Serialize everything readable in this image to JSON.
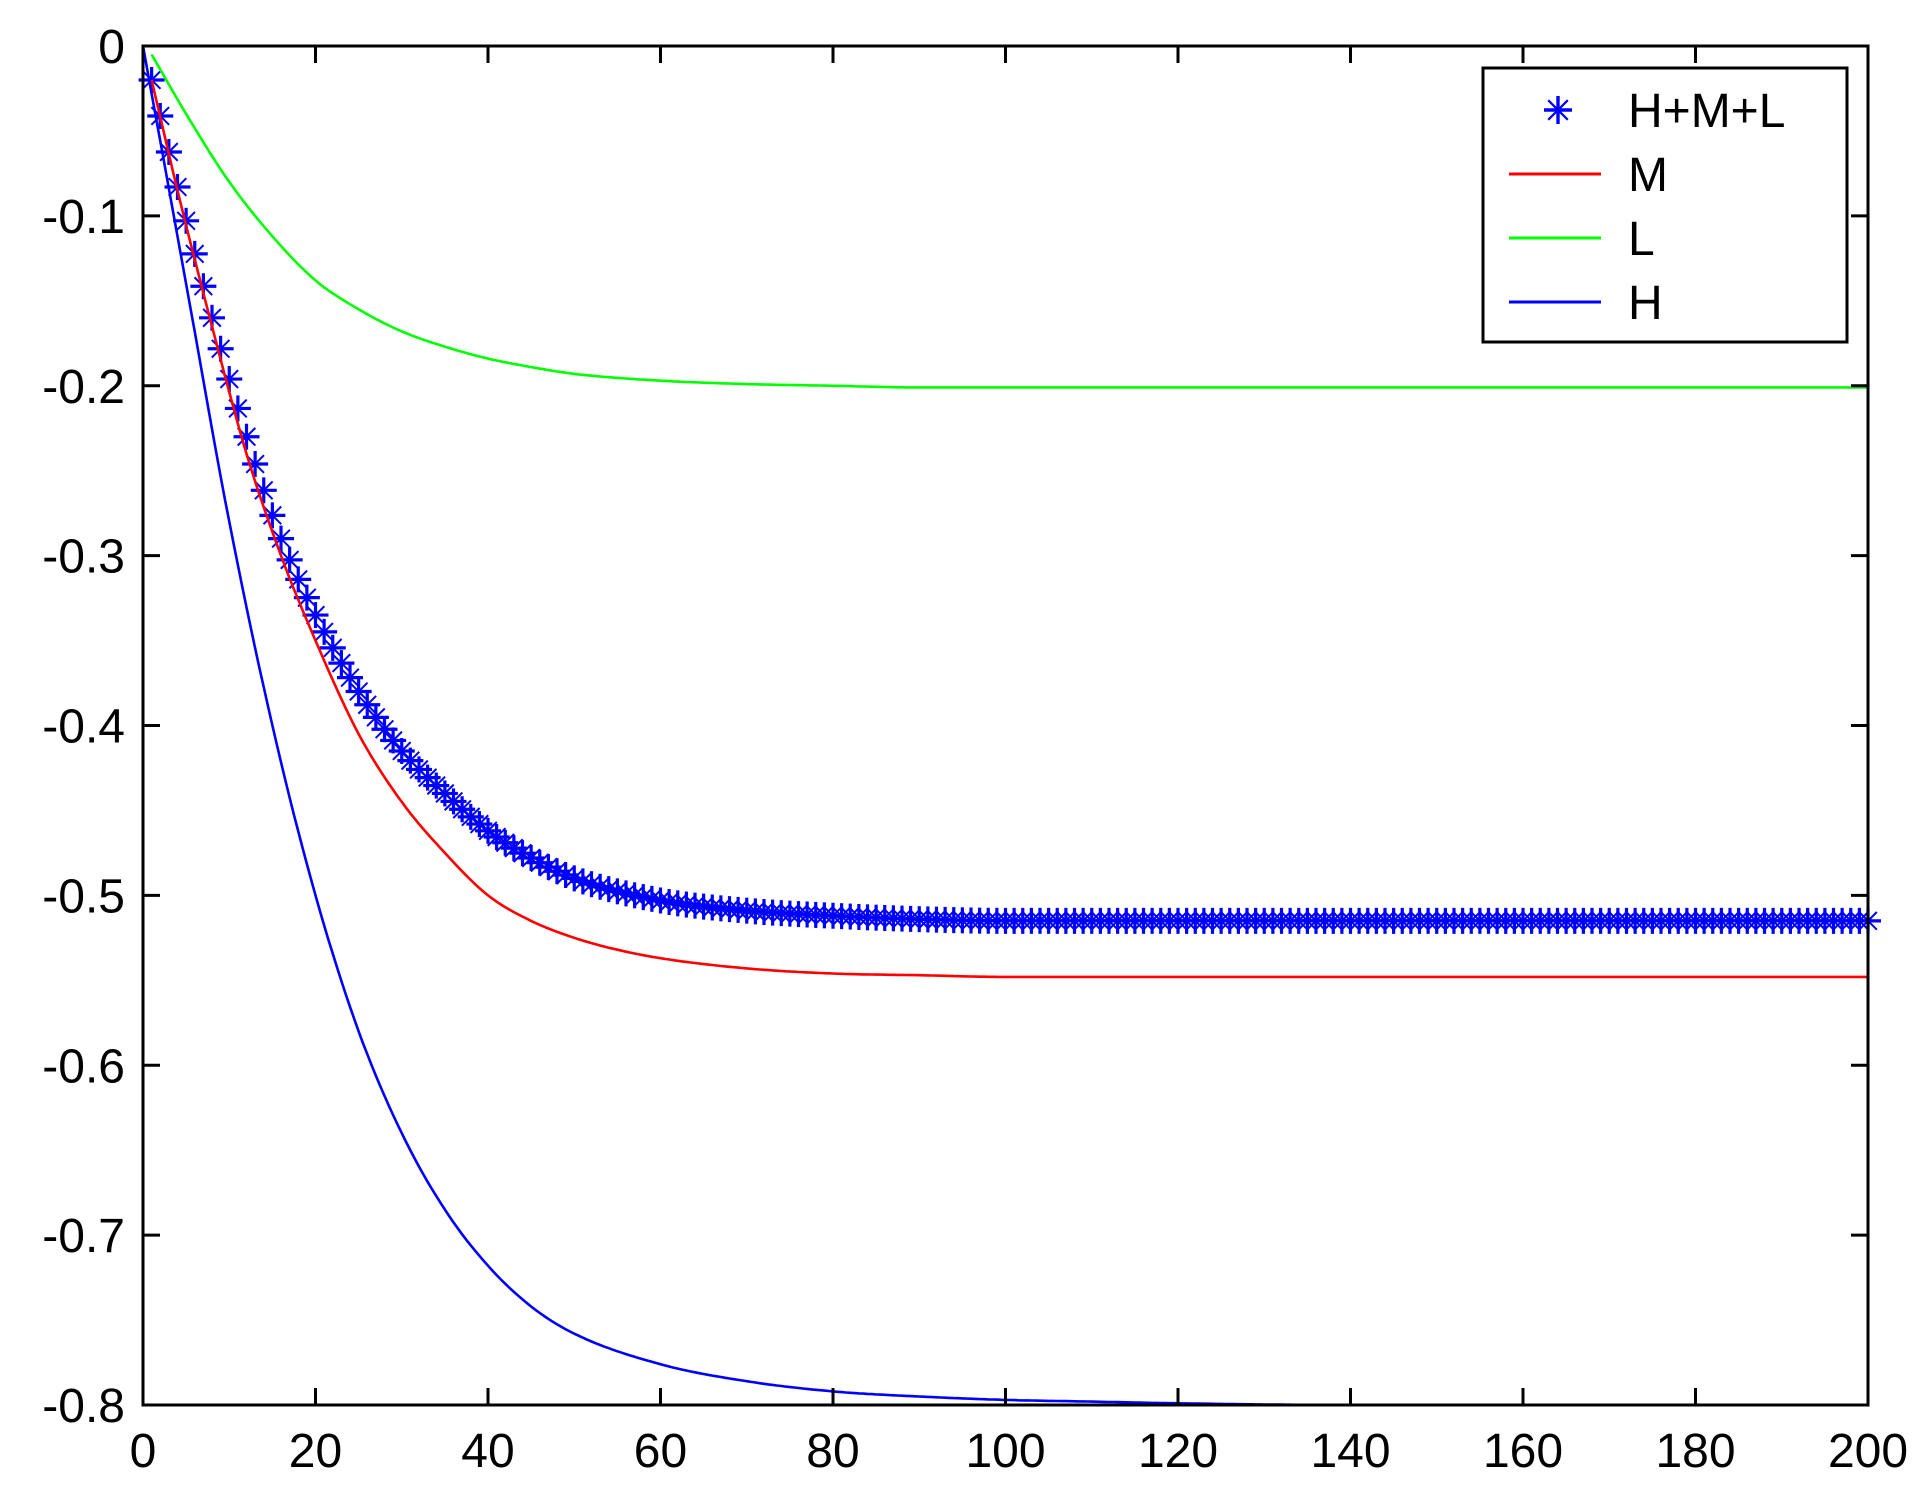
{
  "chart_data": {
    "type": "line",
    "title": "",
    "xlabel": "",
    "ylabel": "",
    "xlim": [
      0,
      200
    ],
    "ylim": [
      -0.8,
      0
    ],
    "xticks": [
      0,
      20,
      40,
      60,
      80,
      100,
      120,
      140,
      160,
      180,
      200
    ],
    "yticks": [
      0,
      -0.1,
      -0.2,
      -0.3,
      -0.4,
      -0.5,
      -0.6,
      -0.7,
      -0.8
    ],
    "xtick_labels": [
      "0",
      "20",
      "40",
      "60",
      "80",
      "100",
      "120",
      "140",
      "160",
      "180",
      "200"
    ],
    "ytick_labels": [
      "0",
      "-0.1",
      "-0.2",
      "-0.3",
      "-0.4",
      "-0.5",
      "-0.6",
      "-0.7",
      "-0.8"
    ],
    "grid": false,
    "legend_position": "top-right",
    "series": [
      {
        "name": "H+M+L",
        "color": "#0000ff",
        "style": "stars",
        "x": [
          1,
          4,
          8,
          12,
          16,
          20,
          25,
          30,
          35,
          40,
          45,
          50,
          60,
          70,
          80,
          90,
          100,
          120,
          140,
          160,
          180,
          200
        ],
        "y": [
          -0.02,
          -0.083,
          -0.16,
          -0.23,
          -0.29,
          -0.335,
          -0.38,
          -0.415,
          -0.44,
          -0.462,
          -0.478,
          -0.49,
          -0.503,
          -0.509,
          -0.512,
          -0.514,
          -0.515,
          -0.515,
          -0.515,
          -0.515,
          -0.515,
          -0.515
        ]
      },
      {
        "name": "M",
        "color": "#ff0000",
        "style": "line",
        "x": [
          1,
          4,
          8,
          12,
          16,
          20,
          25,
          30,
          35,
          40,
          45,
          50,
          55,
          60,
          70,
          80,
          90,
          100,
          120,
          140,
          160,
          180,
          200
        ],
        "y": [
          -0.02,
          -0.085,
          -0.165,
          -0.24,
          -0.3,
          -0.35,
          -0.405,
          -0.445,
          -0.475,
          -0.5,
          -0.515,
          -0.525,
          -0.532,
          -0.537,
          -0.543,
          -0.546,
          -0.547,
          -0.548,
          -0.548,
          -0.548,
          -0.548,
          -0.548,
          -0.548
        ]
      },
      {
        "name": "L",
        "color": "#00ff00",
        "style": "line",
        "x": [
          1,
          5,
          10,
          15,
          20,
          25,
          30,
          35,
          40,
          45,
          50,
          60,
          70,
          80,
          90,
          100,
          120,
          140,
          160,
          180,
          200
        ],
        "y": [
          -0.005,
          -0.04,
          -0.08,
          -0.112,
          -0.138,
          -0.155,
          -0.168,
          -0.177,
          -0.184,
          -0.189,
          -0.193,
          -0.197,
          -0.199,
          -0.2,
          -0.201,
          -0.201,
          -0.201,
          -0.201,
          -0.201,
          -0.201,
          -0.201
        ]
      },
      {
        "name": "H",
        "color": "#0000ff",
        "style": "line",
        "x": [
          0,
          5,
          10,
          15,
          20,
          25,
          30,
          35,
          40,
          45,
          50,
          60,
          70,
          80,
          90,
          100,
          110,
          120,
          140,
          160,
          180,
          200
        ],
        "y": [
          0,
          -0.14,
          -0.28,
          -0.4,
          -0.5,
          -0.58,
          -0.64,
          -0.685,
          -0.718,
          -0.742,
          -0.758,
          -0.776,
          -0.786,
          -0.792,
          -0.795,
          -0.797,
          -0.798,
          -0.799,
          -0.8,
          -0.8,
          -0.8,
          -0.8
        ]
      }
    ]
  }
}
